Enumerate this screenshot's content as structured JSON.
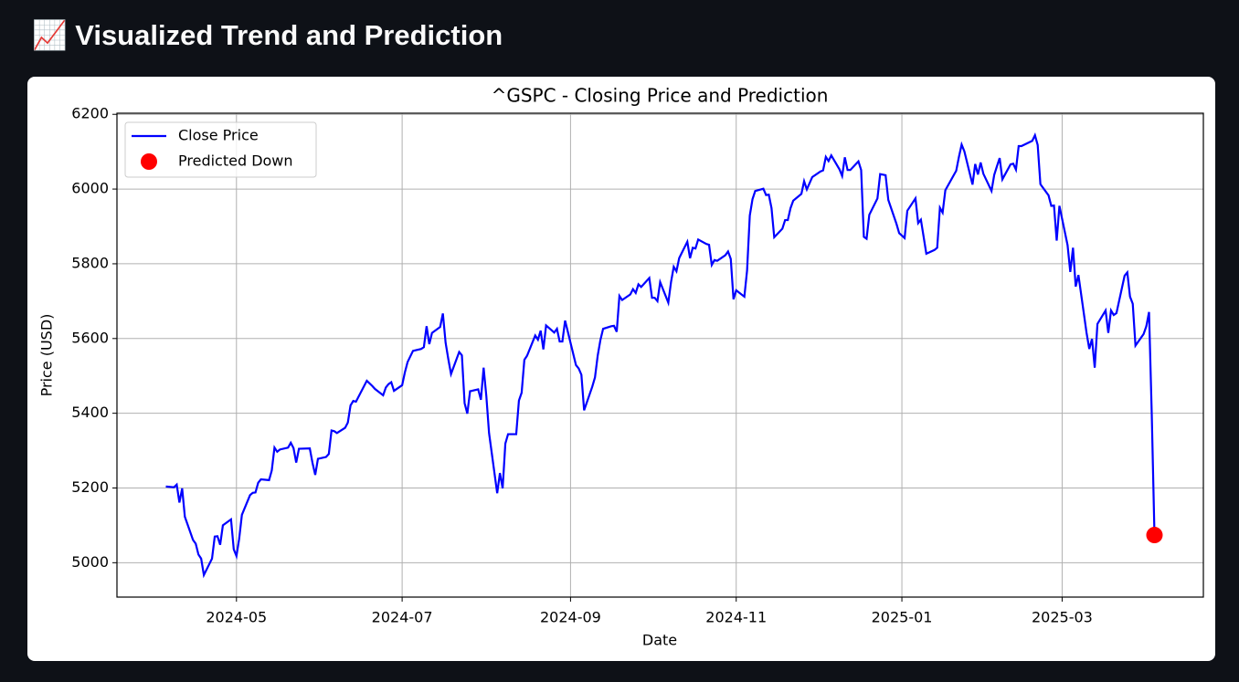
{
  "header": {
    "title": "📈 Visualized Trend and Prediction"
  },
  "chart_data": {
    "type": "line",
    "title": "^GSPC - Closing Price and Prediction",
    "xlabel": "Date",
    "ylabel": "Price (USD)",
    "xlim": [
      "2024-03-18",
      "2025-04-22"
    ],
    "xticks": [
      {
        "value": "2024-05-01",
        "label": "2024-05"
      },
      {
        "value": "2024-07-01",
        "label": "2024-07"
      },
      {
        "value": "2024-09-01",
        "label": "2024-09"
      },
      {
        "value": "2024-11-01",
        "label": "2024-11"
      },
      {
        "value": "2025-01-01",
        "label": "2025-01"
      },
      {
        "value": "2025-03-01",
        "label": "2025-03"
      }
    ],
    "ylim": [
      4908,
      6203
    ],
    "yticks": [
      5000,
      5200,
      5400,
      5600,
      5800,
      6000,
      6200
    ],
    "grid": true,
    "legend": "upper left",
    "x": [
      "2024-04-05",
      "2024-04-08",
      "2024-04-09",
      "2024-04-10",
      "2024-04-11",
      "2024-04-12",
      "2024-04-15",
      "2024-04-16",
      "2024-04-17",
      "2024-04-18",
      "2024-04-19",
      "2024-04-22",
      "2024-04-23",
      "2024-04-24",
      "2024-04-25",
      "2024-04-26",
      "2024-04-29",
      "2024-04-30",
      "2024-05-01",
      "2024-05-02",
      "2024-05-03",
      "2024-05-06",
      "2024-05-07",
      "2024-05-08",
      "2024-05-09",
      "2024-05-10",
      "2024-05-13",
      "2024-05-14",
      "2024-05-15",
      "2024-05-16",
      "2024-05-17",
      "2024-05-20",
      "2024-05-21",
      "2024-05-22",
      "2024-05-23",
      "2024-05-24",
      "2024-05-28",
      "2024-05-29",
      "2024-05-30",
      "2024-05-31",
      "2024-06-03",
      "2024-06-04",
      "2024-06-05",
      "2024-06-06",
      "2024-06-07",
      "2024-06-10",
      "2024-06-11",
      "2024-06-12",
      "2024-06-13",
      "2024-06-14",
      "2024-06-17",
      "2024-06-18",
      "2024-06-20",
      "2024-06-21",
      "2024-06-24",
      "2024-06-25",
      "2024-06-26",
      "2024-06-27",
      "2024-06-28",
      "2024-07-01",
      "2024-07-02",
      "2024-07-03",
      "2024-07-05",
      "2024-07-08",
      "2024-07-09",
      "2024-07-10",
      "2024-07-11",
      "2024-07-12",
      "2024-07-15",
      "2024-07-16",
      "2024-07-17",
      "2024-07-18",
      "2024-07-19",
      "2024-07-22",
      "2024-07-23",
      "2024-07-24",
      "2024-07-25",
      "2024-07-26",
      "2024-07-29",
      "2024-07-30",
      "2024-07-31",
      "2024-08-01",
      "2024-08-02",
      "2024-08-05",
      "2024-08-06",
      "2024-08-07",
      "2024-08-08",
      "2024-08-09",
      "2024-08-12",
      "2024-08-13",
      "2024-08-14",
      "2024-08-15",
      "2024-08-16",
      "2024-08-19",
      "2024-08-20",
      "2024-08-21",
      "2024-08-22",
      "2024-08-23",
      "2024-08-26",
      "2024-08-27",
      "2024-08-28",
      "2024-08-29",
      "2024-08-30",
      "2024-09-03",
      "2024-09-04",
      "2024-09-05",
      "2024-09-06",
      "2024-09-09",
      "2024-09-10",
      "2024-09-11",
      "2024-09-12",
      "2024-09-13",
      "2024-09-16",
      "2024-09-17",
      "2024-09-18",
      "2024-09-19",
      "2024-09-20",
      "2024-09-23",
      "2024-09-24",
      "2024-09-25",
      "2024-09-26",
      "2024-09-27",
      "2024-09-30",
      "2024-10-01",
      "2024-10-02",
      "2024-10-03",
      "2024-10-04",
      "2024-10-07",
      "2024-10-08",
      "2024-10-09",
      "2024-10-10",
      "2024-10-11",
      "2024-10-14",
      "2024-10-15",
      "2024-10-16",
      "2024-10-17",
      "2024-10-18",
      "2024-10-21",
      "2024-10-22",
      "2024-10-23",
      "2024-10-24",
      "2024-10-25",
      "2024-10-28",
      "2024-10-29",
      "2024-10-30",
      "2024-10-31",
      "2024-11-01",
      "2024-11-04",
      "2024-11-05",
      "2024-11-06",
      "2024-11-07",
      "2024-11-08",
      "2024-11-11",
      "2024-11-12",
      "2024-11-13",
      "2024-11-14",
      "2024-11-15",
      "2024-11-18",
      "2024-11-19",
      "2024-11-20",
      "2024-11-21",
      "2024-11-22",
      "2024-11-25",
      "2024-11-26",
      "2024-11-27",
      "2024-11-29",
      "2024-12-02",
      "2024-12-03",
      "2024-12-04",
      "2024-12-05",
      "2024-12-06",
      "2024-12-09",
      "2024-12-10",
      "2024-12-11",
      "2024-12-12",
      "2024-12-13",
      "2024-12-16",
      "2024-12-17",
      "2024-12-18",
      "2024-12-19",
      "2024-12-20",
      "2024-12-23",
      "2024-12-24",
      "2024-12-26",
      "2024-12-27",
      "2024-12-30",
      "2024-12-31",
      "2025-01-02",
      "2025-01-03",
      "2025-01-06",
      "2025-01-07",
      "2025-01-08",
      "2025-01-10",
      "2025-01-13",
      "2025-01-14",
      "2025-01-15",
      "2025-01-16",
      "2025-01-17",
      "2025-01-21",
      "2025-01-22",
      "2025-01-23",
      "2025-01-24",
      "2025-01-27",
      "2025-01-28",
      "2025-01-29",
      "2025-01-30",
      "2025-01-31",
      "2025-02-03",
      "2025-02-04",
      "2025-02-05",
      "2025-02-06",
      "2025-02-07",
      "2025-02-10",
      "2025-02-11",
      "2025-02-12",
      "2025-02-13",
      "2025-02-14",
      "2025-02-18",
      "2025-02-19",
      "2025-02-20",
      "2025-02-21",
      "2025-02-24",
      "2025-02-25",
      "2025-02-26",
      "2025-02-27",
      "2025-02-28",
      "2025-03-03",
      "2025-03-04",
      "2025-03-05",
      "2025-03-06",
      "2025-03-07",
      "2025-03-10",
      "2025-03-11",
      "2025-03-12",
      "2025-03-13",
      "2025-03-14",
      "2025-03-17",
      "2025-03-18",
      "2025-03-19",
      "2025-03-20",
      "2025-03-21",
      "2025-03-24",
      "2025-03-25",
      "2025-03-26",
      "2025-03-27",
      "2025-03-28",
      "2025-03-31",
      "2025-04-01",
      "2025-04-02",
      "2025-04-03",
      "2025-04-04"
    ],
    "series": [
      {
        "name": "Close Price",
        "color": "#0000ff",
        "values": [
          5204,
          5202,
          5209,
          5161,
          5199,
          5123,
          5061,
          5051,
          5022,
          5011,
          4967,
          5011,
          5070,
          5071,
          5048,
          5100,
          5116,
          5036,
          5018,
          5064,
          5128,
          5181,
          5187,
          5188,
          5214,
          5223,
          5221,
          5247,
          5308,
          5297,
          5303,
          5308,
          5321,
          5307,
          5268,
          5305,
          5306,
          5267,
          5235,
          5278,
          5283,
          5291,
          5354,
          5352,
          5347,
          5361,
          5375,
          5421,
          5433,
          5431,
          5473,
          5487,
          5473,
          5465,
          5448,
          5469,
          5478,
          5483,
          5460,
          5475,
          5509,
          5537,
          5567,
          5572,
          5577,
          5633,
          5585,
          5615,
          5631,
          5667,
          5589,
          5545,
          5505,
          5564,
          5555,
          5427,
          5399,
          5459,
          5464,
          5436,
          5522,
          5446,
          5347,
          5186,
          5240,
          5199,
          5319,
          5344,
          5344,
          5434,
          5455,
          5543,
          5554,
          5608,
          5597,
          5621,
          5571,
          5635,
          5616,
          5626,
          5592,
          5592,
          5648,
          5529,
          5520,
          5503,
          5408,
          5471,
          5496,
          5554,
          5596,
          5626,
          5633,
          5634,
          5618,
          5714,
          5703,
          5718,
          5732,
          5722,
          5745,
          5738,
          5762,
          5709,
          5709,
          5700,
          5751,
          5696,
          5751,
          5792,
          5780,
          5815,
          5859,
          5815,
          5843,
          5841,
          5865,
          5853,
          5851,
          5797,
          5810,
          5808,
          5823,
          5833,
          5813,
          5705,
          5729,
          5712,
          5782,
          5929,
          5973,
          5995,
          6001,
          5984,
          5985,
          5949,
          5871,
          5894,
          5917,
          5917,
          5949,
          5969,
          5987,
          6021,
          5999,
          6032,
          6047,
          6050,
          6086,
          6075,
          6090,
          6053,
          6035,
          6085,
          6051,
          6051,
          6074,
          6051,
          5872,
          5867,
          5931,
          5975,
          6040,
          6037,
          5971,
          5907,
          5882,
          5869,
          5942,
          5975,
          5909,
          5918,
          5827,
          5837,
          5843,
          5950,
          5937,
          5997,
          6049,
          6086,
          6119,
          6101,
          6012,
          6067,
          6039,
          6071,
          6041,
          5995,
          6038,
          6061,
          6083,
          6026,
          6066,
          6068,
          6052,
          6115,
          6115,
          6129,
          6144,
          6118,
          6013,
          5983,
          5955,
          5956,
          5862,
          5955,
          5850,
          5778,
          5843,
          5739,
          5770,
          5615,
          5572,
          5599,
          5522,
          5639,
          5675,
          5615,
          5675,
          5663,
          5668,
          5768,
          5777,
          5712,
          5693,
          5581,
          5612,
          5633,
          5671,
          5397,
          5074
        ]
      },
      {
        "name": "Predicted Down",
        "type": "scatter",
        "color": "#ff0000",
        "x": [
          "2025-04-04"
        ],
        "values": [
          5074
        ]
      }
    ]
  }
}
